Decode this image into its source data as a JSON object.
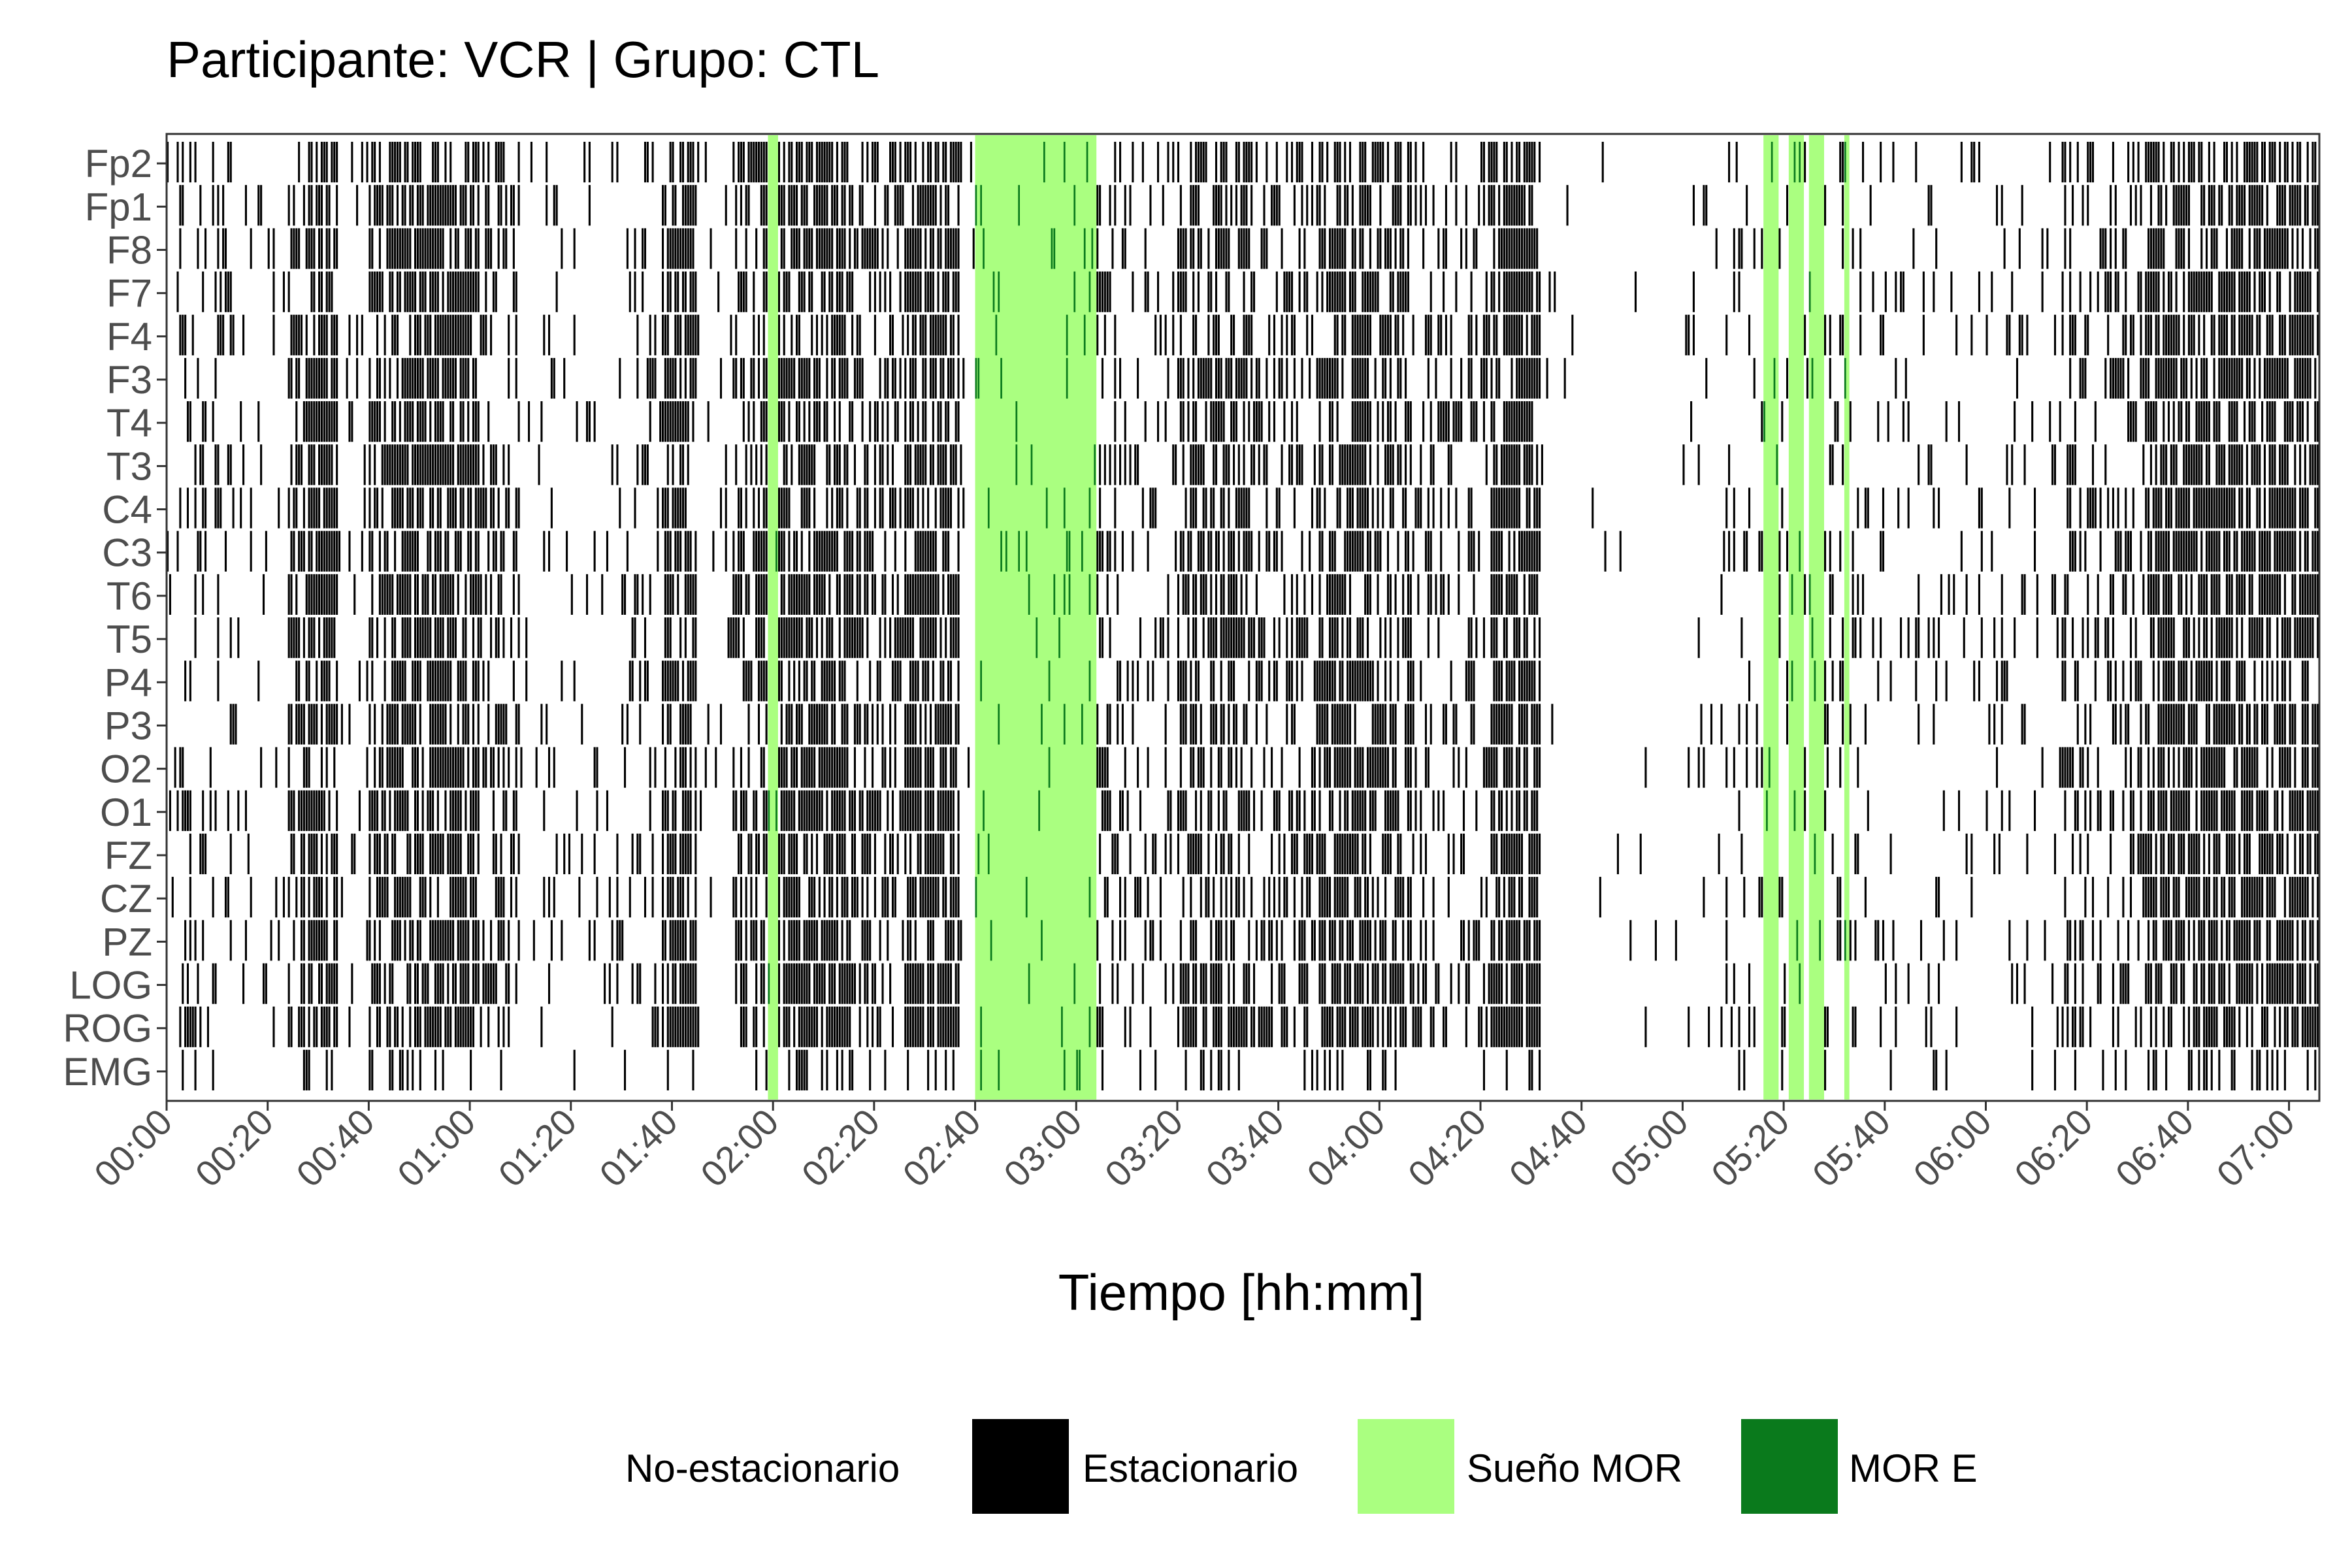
{
  "chart_data": {
    "type": "heatmap",
    "title": "Participante: VCR | Grupo: CTL",
    "xlabel": "Tiempo [hh:mm]",
    "ylabel": "",
    "x_unit": "minutes since 00:00",
    "xlim": [
      0,
      426
    ],
    "x_ticks": [
      0,
      20,
      40,
      60,
      80,
      100,
      120,
      140,
      160,
      180,
      200,
      220,
      240,
      260,
      280,
      300,
      320,
      340,
      360,
      380,
      400,
      420
    ],
    "x_tick_labels": [
      "00:00",
      "00:20",
      "00:40",
      "01:00",
      "01:20",
      "01:40",
      "02:00",
      "02:20",
      "02:40",
      "03:00",
      "03:20",
      "03:40",
      "04:00",
      "04:20",
      "04:40",
      "05:00",
      "05:20",
      "05:40",
      "06:00",
      "06:20",
      "06:40",
      "07:00"
    ],
    "channels": [
      "Fp2",
      "Fp1",
      "F8",
      "F7",
      "F4",
      "F3",
      "T4",
      "T3",
      "C4",
      "C3",
      "T6",
      "T5",
      "P4",
      "P3",
      "O2",
      "O1",
      "FZ",
      "CZ",
      "PZ",
      "LOG",
      "ROG",
      "EMG"
    ],
    "legend": [
      {
        "label": "No-estacionario",
        "color": "#000000"
      },
      {
        "label": "Estacionario",
        "color": "#ffffff"
      },
      {
        "label": "Sueño MOR",
        "color": "#aaff80"
      },
      {
        "label": "MOR E",
        "color": "#0a7a1c"
      }
    ],
    "legend_position": "bottom",
    "rem_periods": [
      [
        119,
        121
      ],
      [
        160,
        184
      ],
      [
        316,
        319
      ],
      [
        321,
        324
      ],
      [
        325,
        328
      ],
      [
        332,
        333
      ]
    ],
    "activity_profile": [
      [
        0,
        2,
        0.05
      ],
      [
        2,
        8,
        0.3
      ],
      [
        8,
        14,
        0.18
      ],
      [
        14,
        24,
        0.1
      ],
      [
        24,
        28,
        0.45
      ],
      [
        28,
        34,
        0.75
      ],
      [
        34,
        40,
        0.1
      ],
      [
        40,
        44,
        0.55
      ],
      [
        44,
        62,
        0.72
      ],
      [
        62,
        70,
        0.35
      ],
      [
        70,
        92,
        0.1
      ],
      [
        92,
        98,
        0.2
      ],
      [
        98,
        105,
        0.65
      ],
      [
        105,
        112,
        0.12
      ],
      [
        112,
        118,
        0.5
      ],
      [
        118,
        135,
        0.72
      ],
      [
        135,
        146,
        0.45
      ],
      [
        146,
        157,
        0.72
      ],
      [
        157,
        160,
        0.05
      ],
      [
        184,
        190,
        0.35
      ],
      [
        190,
        200,
        0.18
      ],
      [
        200,
        215,
        0.55
      ],
      [
        215,
        228,
        0.35
      ],
      [
        228,
        238,
        0.68
      ],
      [
        238,
        247,
        0.52
      ],
      [
        247,
        262,
        0.3
      ],
      [
        262,
        272,
        0.78
      ],
      [
        272,
        300,
        0.02
      ],
      [
        300,
        310,
        0.08
      ],
      [
        310,
        316,
        0.15
      ],
      [
        316,
        336,
        0.2
      ],
      [
        336,
        375,
        0.1
      ],
      [
        375,
        392,
        0.35
      ],
      [
        392,
        426,
        0.7
      ]
    ]
  }
}
